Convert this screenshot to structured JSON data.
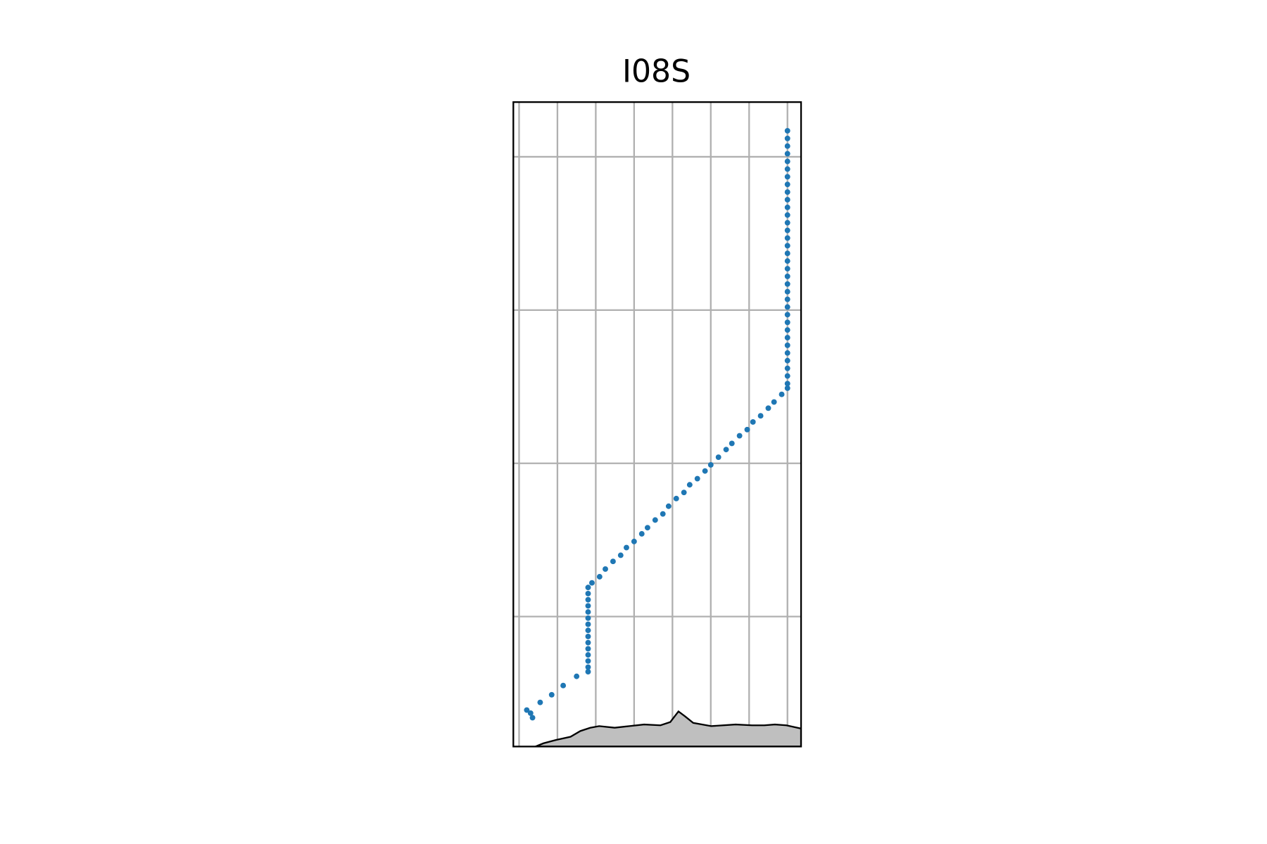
{
  "chart_data": {
    "type": "scatter",
    "title": "I08S",
    "color": "#1f77b4",
    "grid": true,
    "xlim": [
      79.7,
      94.71
    ],
    "ylim": [
      -68.48,
      -26.43
    ],
    "xticks": [
      80,
      82,
      84,
      86,
      88,
      90,
      92,
      94
    ],
    "yticks": [
      -60,
      -50,
      -40,
      -30
    ],
    "x": [
      94.0,
      94.0,
      94.0,
      94.0,
      94.0,
      94.0,
      94.0,
      94.0,
      94.0,
      94.0,
      94.0,
      94.0,
      94.0,
      94.0,
      94.0,
      94.0,
      94.0,
      94.0,
      94.0,
      94.0,
      94.0,
      94.0,
      94.0,
      94.0,
      94.0,
      94.0,
      94.0,
      94.0,
      94.0,
      94.0,
      94.0,
      94.0,
      94.0,
      94.0,
      94.0,
      93.7,
      93.3,
      93.0,
      92.6,
      92.2,
      91.9,
      91.5,
      91.1,
      90.8,
      90.4,
      90.0,
      89.7,
      89.3,
      88.9,
      88.6,
      88.2,
      87.8,
      87.5,
      87.1,
      86.7,
      86.4,
      86.0,
      85.6,
      85.3,
      84.9,
      84.5,
      84.2,
      83.8,
      83.6,
      83.6,
      83.6,
      83.6,
      83.6,
      83.6,
      83.6,
      83.6,
      83.6,
      83.6,
      83.6,
      83.6,
      83.6,
      83.6,
      83.6,
      83.0,
      82.3,
      81.7,
      81.1,
      80.4,
      80.6,
      80.7
    ],
    "values": [
      -28.3,
      -28.8,
      -29.3,
      -29.8,
      -30.3,
      -30.8,
      -31.3,
      -31.8,
      -32.3,
      -32.8,
      -33.3,
      -33.8,
      -34.3,
      -34.8,
      -35.3,
      -35.8,
      -36.3,
      -36.8,
      -37.3,
      -37.8,
      -38.3,
      -38.8,
      -39.3,
      -39.8,
      -40.3,
      -40.8,
      -41.3,
      -41.8,
      -42.3,
      -42.8,
      -43.3,
      -43.8,
      -44.3,
      -44.8,
      -45.1,
      -45.5,
      -46.0,
      -46.4,
      -46.9,
      -47.3,
      -47.8,
      -48.2,
      -48.7,
      -49.1,
      -49.6,
      -50.1,
      -50.5,
      -51.0,
      -51.4,
      -51.9,
      -52.3,
      -52.8,
      -53.3,
      -53.7,
      -54.2,
      -54.6,
      -55.1,
      -55.5,
      -56.0,
      -56.4,
      -56.9,
      -57.4,
      -57.8,
      -58.1,
      -58.5,
      -58.9,
      -59.3,
      -59.7,
      -60.1,
      -60.5,
      -60.9,
      -61.3,
      -61.7,
      -62.1,
      -62.5,
      -62.9,
      -63.3,
      -63.6,
      -63.9,
      -64.5,
      -65.1,
      -65.6,
      -66.1,
      -66.3,
      -66.6
    ]
  }
}
